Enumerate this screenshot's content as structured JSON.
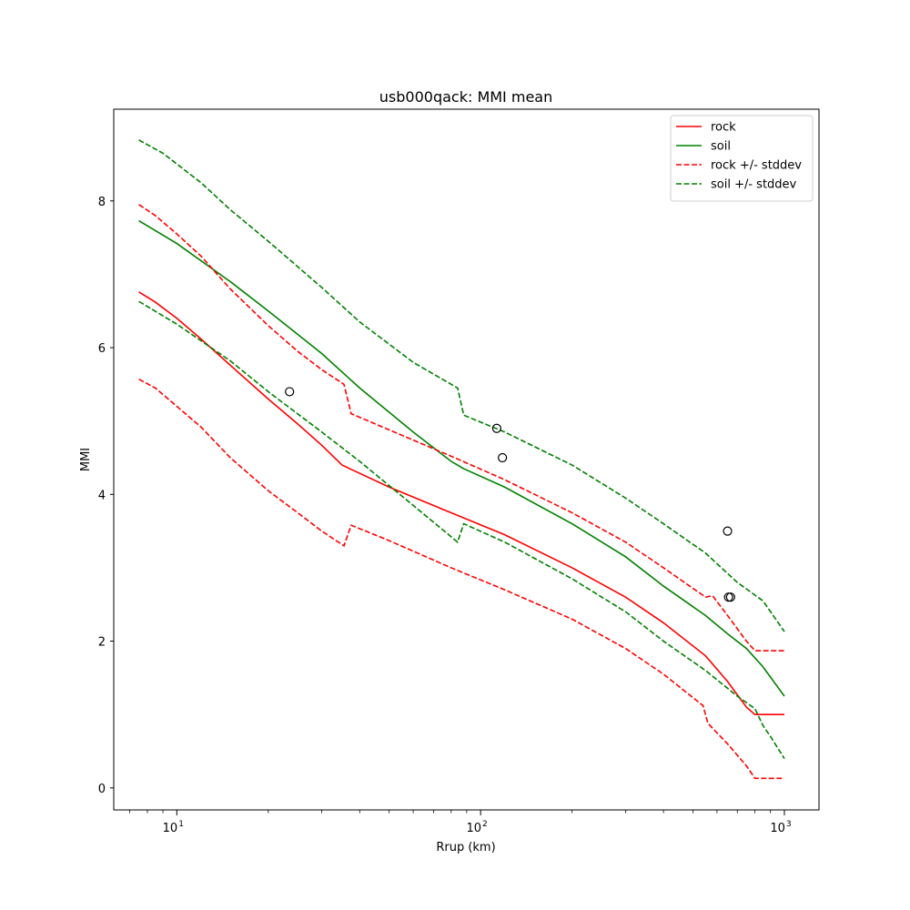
{
  "chart_data": {
    "type": "line",
    "title": "usb000qack: MMI mean",
    "xlabel": "Rrup (km)",
    "ylabel": "MMI",
    "xscale": "log",
    "xlim": [
      6.2,
      1300
    ],
    "ylim": [
      -0.3,
      9.25
    ],
    "x_ticks": [
      {
        "value": 10,
        "base": "10",
        "exp": "1"
      },
      {
        "value": 100,
        "base": "10",
        "exp": "2"
      },
      {
        "value": 1000,
        "base": "10",
        "exp": "3"
      }
    ],
    "y_ticks": [
      0,
      2,
      4,
      6,
      8
    ],
    "legend_position": "top-right",
    "grid": false,
    "series": [
      {
        "name": "rock",
        "color": "#ff0000",
        "dash": "solid",
        "x": [
          7.5,
          8.5,
          10,
          12,
          15,
          20,
          25,
          30,
          35,
          38,
          50,
          80,
          120,
          200,
          300,
          400,
          550,
          650,
          750,
          800,
          1000
        ],
        "y": [
          6.76,
          6.62,
          6.4,
          6.12,
          5.76,
          5.3,
          4.96,
          4.67,
          4.4,
          4.33,
          4.1,
          3.75,
          3.45,
          3.0,
          2.6,
          2.25,
          1.8,
          1.45,
          1.1,
          1.0,
          1.0
        ]
      },
      {
        "name": "soil",
        "color": "#008000",
        "dash": "solid",
        "x": [
          7.5,
          10,
          15,
          20,
          30,
          40,
          60,
          80,
          88,
          120,
          200,
          300,
          400,
          550,
          650,
          750,
          850,
          1000
        ],
        "y": [
          7.73,
          7.42,
          6.9,
          6.5,
          5.92,
          5.45,
          4.85,
          4.45,
          4.35,
          4.1,
          3.6,
          3.15,
          2.75,
          2.35,
          2.1,
          1.9,
          1.65,
          1.25
        ]
      },
      {
        "name": "rock +/- stddev",
        "color": "#ff0000",
        "dash": "dashed",
        "x": [
          7.5,
          8.5,
          10,
          12,
          15,
          20,
          25,
          30,
          35.5,
          37.5,
          50,
          80,
          120,
          200,
          300,
          400,
          550,
          580,
          650,
          750,
          800,
          1000
        ],
        "y": [
          7.95,
          7.8,
          7.55,
          7.25,
          6.8,
          6.3,
          5.95,
          5.7,
          5.5,
          5.1,
          4.88,
          4.52,
          4.2,
          3.75,
          3.35,
          3.0,
          2.6,
          2.62,
          2.35,
          2.0,
          1.87,
          1.87
        ]
      },
      {
        "name": "",
        "color": "#ff0000",
        "dash": "dashed",
        "x": [
          7.5,
          8.5,
          10,
          12,
          15,
          20,
          25,
          30,
          35.5,
          37.5,
          50,
          80,
          120,
          200,
          300,
          400,
          540,
          560,
          650,
          750,
          800,
          1000
        ],
        "y": [
          5.57,
          5.45,
          5.2,
          4.92,
          4.5,
          4.05,
          3.75,
          3.5,
          3.3,
          3.58,
          3.37,
          3.0,
          2.7,
          2.3,
          1.9,
          1.55,
          1.12,
          0.88,
          0.6,
          0.3,
          0.13,
          0.13
        ]
      },
      {
        "name": "soil +/- stddev",
        "color": "#008000",
        "dash": "dashed",
        "x": [
          7.5,
          9,
          12,
          15,
          20,
          30,
          40,
          60,
          84,
          88,
          120,
          200,
          300,
          400,
          550,
          700,
          850,
          1000
        ],
        "y": [
          8.83,
          8.65,
          8.25,
          7.88,
          7.45,
          6.82,
          6.35,
          5.8,
          5.45,
          5.08,
          4.85,
          4.4,
          3.95,
          3.6,
          3.2,
          2.8,
          2.55,
          2.13
        ]
      },
      {
        "name": "",
        "color": "#008000",
        "dash": "dashed",
        "x": [
          7.5,
          10,
          15,
          20,
          30,
          40,
          60,
          84,
          88,
          120,
          200,
          300,
          400,
          550,
          700,
          800,
          850,
          900,
          1000
        ],
        "y": [
          6.63,
          6.32,
          5.82,
          5.4,
          4.85,
          4.45,
          3.85,
          3.35,
          3.6,
          3.35,
          2.85,
          2.4,
          2.0,
          1.6,
          1.25,
          1.08,
          0.85,
          0.7,
          0.4
        ]
      }
    ],
    "observations": {
      "marker": "open-circle",
      "color": "#000000",
      "x": [
        23.5,
        113,
        118,
        650,
        655,
        665
      ],
      "y": [
        5.4,
        4.9,
        4.5,
        3.5,
        2.6,
        2.6
      ]
    }
  }
}
